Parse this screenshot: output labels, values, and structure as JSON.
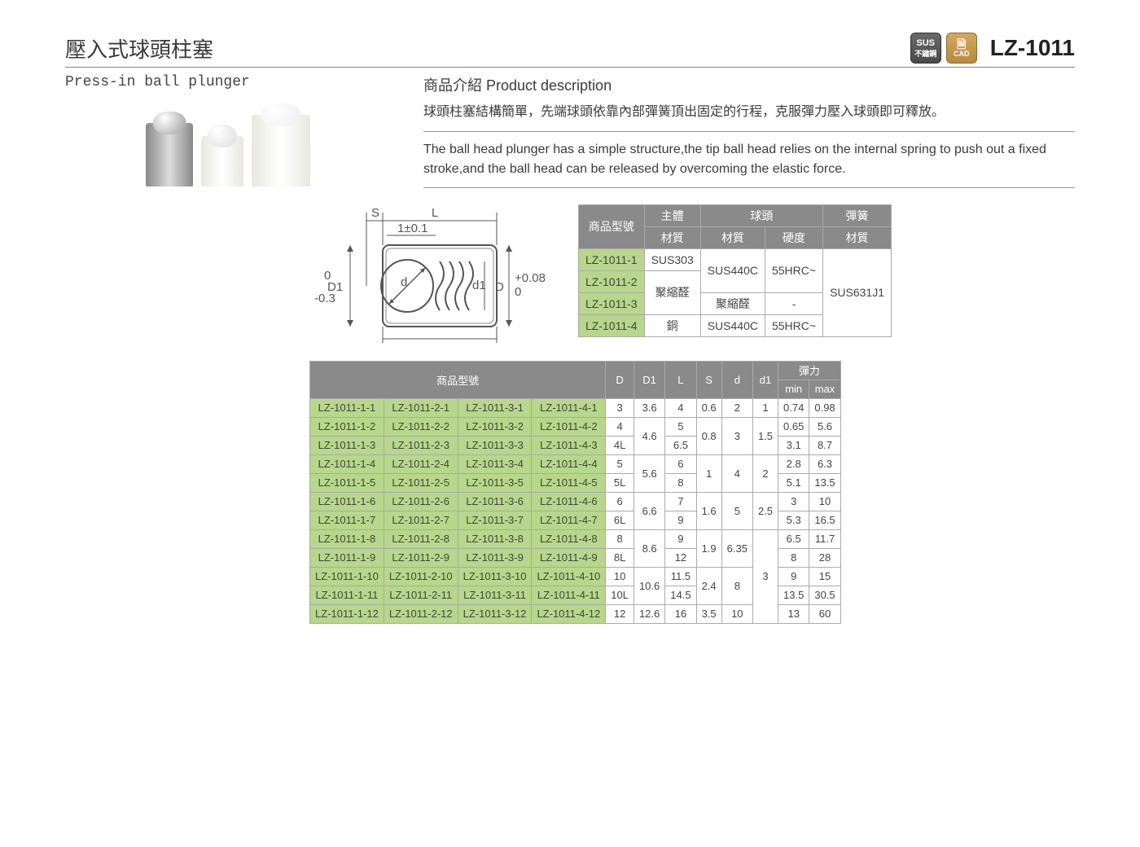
{
  "header": {
    "title_cn": "壓入式球頭柱塞",
    "title_en": "Press-in ball plunger",
    "part_no": "LZ-1011",
    "badges": {
      "sus_top": "SUS",
      "sus_bottom": "不鏽鋼",
      "cad": "CAD"
    }
  },
  "description": {
    "heading": "商品介紹 Product description",
    "cn": "球頭柱塞結構簡單，先端球頭依靠內部彈簧頂出固定的行程，克服彈力壓入球頭即可釋放。",
    "en": "The ball head plunger has a simple structure,the tip ball head relies on the internal spring to push out a fixed stroke,and the ball head can be released by overcoming the elastic force."
  },
  "diagram_labels": {
    "S": "S",
    "L": "L",
    "tol1": "1±0.1",
    "D1_left_top": "0",
    "D1_left": "D1",
    "D1_left_bot": "-0.3",
    "d": "d",
    "d1": "d1",
    "D_right": "D",
    "D_tol_top": "+0.08",
    "D_tol_bot": "0"
  },
  "material_table": {
    "headers": {
      "model": "商品型號",
      "body": "主體",
      "ball": "球頭",
      "spring": "彈簧",
      "material": "材質",
      "hardness": "硬度"
    },
    "rows": [
      {
        "model": "LZ-1011-1",
        "body": "SUS303",
        "ball_mat": "SUS440C",
        "ball_hard": "55HRC~",
        "spring": "SUS631J1"
      },
      {
        "model": "LZ-1011-2",
        "body": "聚縮醛",
        "ball_mat": "SUS440C",
        "ball_hard": "55HRC~",
        "spring": "SUS631J1"
      },
      {
        "model": "LZ-1011-3",
        "body": "聚縮醛",
        "ball_mat": "聚縮醛",
        "ball_hard": "-",
        "spring": "SUS631J1"
      },
      {
        "model": "LZ-1011-4",
        "body": "銅",
        "ball_mat": "SUS440C",
        "ball_hard": "55HRC~",
        "spring": "SUS631J1"
      }
    ]
  },
  "spec_table": {
    "headers": {
      "model": "商品型號",
      "D": "D",
      "D1": "D1",
      "L": "L",
      "S": "S",
      "d": "d",
      "d1": "d1",
      "force": "彈力",
      "min": "min",
      "max": "max"
    },
    "colors": {
      "header_bg": "#8a8a8a",
      "green": "#b7d78a"
    },
    "rows": [
      {
        "m": [
          "LZ-1011-1-1",
          "LZ-1011-2-1",
          "LZ-1011-3-1",
          "LZ-1011-4-1"
        ],
        "D": "3",
        "D1": "3.6",
        "L": "4",
        "S": "0.6",
        "d": "2",
        "d1": "1",
        "min": "0.74",
        "max": "0.98"
      },
      {
        "m": [
          "LZ-1011-1-2",
          "LZ-1011-2-2",
          "LZ-1011-3-2",
          "LZ-1011-4-2"
        ],
        "D": "4",
        "D1": "4.6",
        "L": "5",
        "S": "0.8",
        "d": "3",
        "d1": "1.5",
        "min": "0.65",
        "max": "5.6"
      },
      {
        "m": [
          "LZ-1011-1-3",
          "LZ-1011-2-3",
          "LZ-1011-3-3",
          "LZ-1011-4-3"
        ],
        "D": "4L",
        "D1": "4.6",
        "L": "6.5",
        "S": "0.8",
        "d": "3",
        "d1": "1.5",
        "min": "3.1",
        "max": "8.7"
      },
      {
        "m": [
          "LZ-1011-1-4",
          "LZ-1011-2-4",
          "LZ-1011-3-4",
          "LZ-1011-4-4"
        ],
        "D": "5",
        "D1": "5.6",
        "L": "6",
        "S": "1",
        "d": "4",
        "d1": "2",
        "min": "2.8",
        "max": "6.3"
      },
      {
        "m": [
          "LZ-1011-1-5",
          "LZ-1011-2-5",
          "LZ-1011-3-5",
          "LZ-1011-4-5"
        ],
        "D": "5L",
        "D1": "5.6",
        "L": "8",
        "S": "1",
        "d": "4",
        "d1": "2",
        "min": "5.1",
        "max": "13.5"
      },
      {
        "m": [
          "LZ-1011-1-6",
          "LZ-1011-2-6",
          "LZ-1011-3-6",
          "LZ-1011-4-6"
        ],
        "D": "6",
        "D1": "6.6",
        "L": "7",
        "S": "1.6",
        "d": "5",
        "d1": "2.5",
        "min": "3",
        "max": "10"
      },
      {
        "m": [
          "LZ-1011-1-7",
          "LZ-1011-2-7",
          "LZ-1011-3-7",
          "LZ-1011-4-7"
        ],
        "D": "6L",
        "D1": "6.6",
        "L": "9",
        "S": "1.6",
        "d": "5",
        "d1": "2.5",
        "min": "5.3",
        "max": "16.5"
      },
      {
        "m": [
          "LZ-1011-1-8",
          "LZ-1011-2-8",
          "LZ-1011-3-8",
          "LZ-1011-4-8"
        ],
        "D": "8",
        "D1": "8.6",
        "L": "9",
        "S": "1.9",
        "d": "6.35",
        "d1": "3",
        "min": "6.5",
        "max": "11.7"
      },
      {
        "m": [
          "LZ-1011-1-9",
          "LZ-1011-2-9",
          "LZ-1011-3-9",
          "LZ-1011-4-9"
        ],
        "D": "8L",
        "D1": "8.6",
        "L": "12",
        "S": "1.9",
        "d": "6.35",
        "d1": "3",
        "min": "8",
        "max": "28"
      },
      {
        "m": [
          "LZ-1011-1-10",
          "LZ-1011-2-10",
          "LZ-1011-3-10",
          "LZ-1011-4-10"
        ],
        "D": "10",
        "D1": "10.6",
        "L": "11.5",
        "S": "2.4",
        "d": "8",
        "d1": "3",
        "min": "9",
        "max": "15"
      },
      {
        "m": [
          "LZ-1011-1-11",
          "LZ-1011-2-11",
          "LZ-1011-3-11",
          "LZ-1011-4-11"
        ],
        "D": "10L",
        "D1": "10.6",
        "L": "14.5",
        "S": "2.4",
        "d": "8",
        "d1": "3",
        "min": "13.5",
        "max": "30.5"
      },
      {
        "m": [
          "LZ-1011-1-12",
          "LZ-1011-2-12",
          "LZ-1011-3-12",
          "LZ-1011-4-12"
        ],
        "D": "12",
        "D1": "12.6",
        "L": "16",
        "S": "3.5",
        "d": "10",
        "d1": "3",
        "min": "13",
        "max": "60"
      }
    ],
    "merges": {
      "D1": [
        [
          1,
          2
        ],
        [
          3,
          4
        ],
        [
          5,
          6
        ],
        [
          7,
          8
        ],
        [
          9,
          10
        ]
      ],
      "S": [
        [
          1,
          2
        ],
        [
          3,
          4
        ],
        [
          5,
          6
        ],
        [
          7,
          8
        ],
        [
          9,
          10
        ]
      ],
      "d": [
        [
          1,
          2
        ],
        [
          3,
          4
        ],
        [
          5,
          6
        ],
        [
          7,
          8
        ],
        [
          9,
          10
        ]
      ],
      "d1": [
        [
          1,
          2
        ],
        [
          3,
          4
        ],
        [
          5,
          6
        ],
        [
          7,
          11
        ]
      ]
    }
  }
}
